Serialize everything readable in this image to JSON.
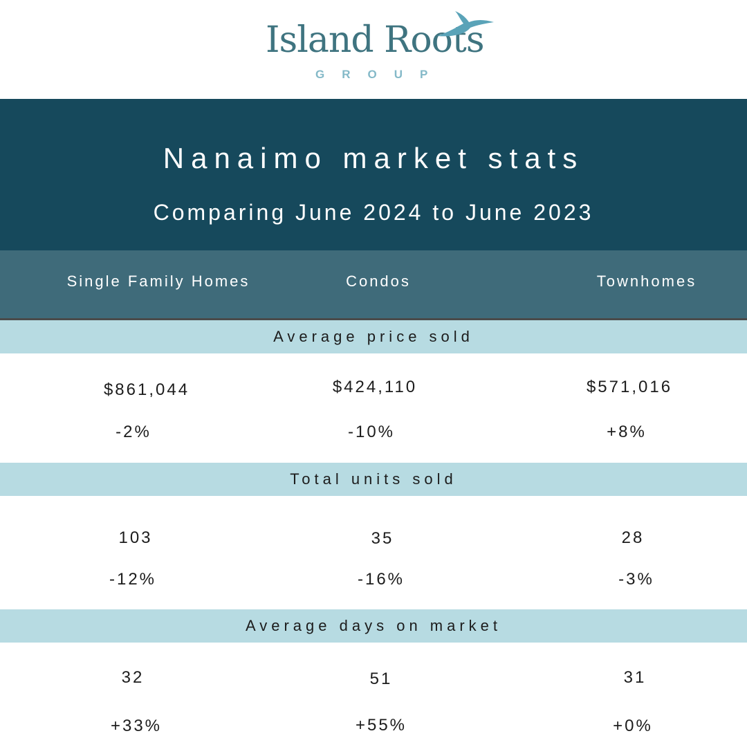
{
  "logo": {
    "name": "Island Roots",
    "subtitle": "GROUP",
    "icon": "seagull-icon",
    "color": "#3f7480",
    "subtitle_color": "#84b9c8"
  },
  "header": {
    "title": "Nanaimo market stats",
    "subtitle": "Comparing June 2024 to June 2023",
    "background": "#16495c"
  },
  "columns": [
    "Single Family Homes",
    "Condos",
    "Townhomes"
  ],
  "sections": [
    {
      "label": "Average price sold",
      "values": [
        "$861,044",
        "$424,110",
        "$571,016"
      ],
      "changes": [
        "-2%",
        "-10%",
        "+8%"
      ]
    },
    {
      "label": "Total units sold",
      "values": [
        "103",
        "35",
        "28"
      ],
      "changes": [
        "-12%",
        "-16%",
        "-3%"
      ]
    },
    {
      "label": "Average days on market",
      "values": [
        "32",
        "51",
        "31"
      ],
      "changes": [
        "+33%",
        "+55%",
        "+0%"
      ]
    }
  ],
  "colors": {
    "column_header_bg": "#3f6b7a",
    "section_band_bg": "#b7dbe2",
    "text": "#1c1c1c"
  }
}
